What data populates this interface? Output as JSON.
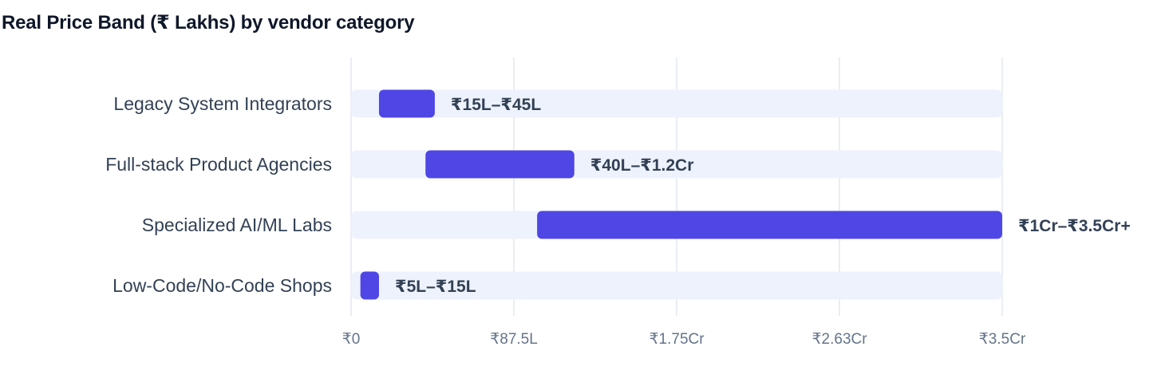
{
  "chart_data": {
    "type": "bar",
    "title": "Real Price Band (₹ Lakhs) by vendor category",
    "unit": "₹ Lakhs",
    "xlim": [
      0,
      350
    ],
    "x_ticks": [
      {
        "value": 0,
        "label": "₹0"
      },
      {
        "value": 87.5,
        "label": "₹87.5L"
      },
      {
        "value": 175,
        "label": "₹1.75Cr"
      },
      {
        "value": 262.5,
        "label": "₹2.63Cr"
      },
      {
        "value": 350,
        "label": "₹3.5Cr"
      }
    ],
    "grid": true,
    "colors": {
      "bar": "#4f46e5",
      "track": "#eef2fc",
      "grid": "#e2e8f0"
    },
    "categories": [
      "Legacy System Integrators",
      "Full-stack Product Agencies",
      "Specialized AI/ML Labs",
      "Low-Code/No-Code Shops"
    ],
    "ranges": [
      {
        "low": 15,
        "high": 45,
        "label": "₹15L–₹45L"
      },
      {
        "low": 40,
        "high": 120,
        "label": "₹40L–₹1.2Cr"
      },
      {
        "low": 100,
        "high": 350,
        "label": "₹1Cr–₹3.5Cr+"
      },
      {
        "low": 5,
        "high": 15,
        "label": "₹5L–₹15L"
      }
    ]
  }
}
